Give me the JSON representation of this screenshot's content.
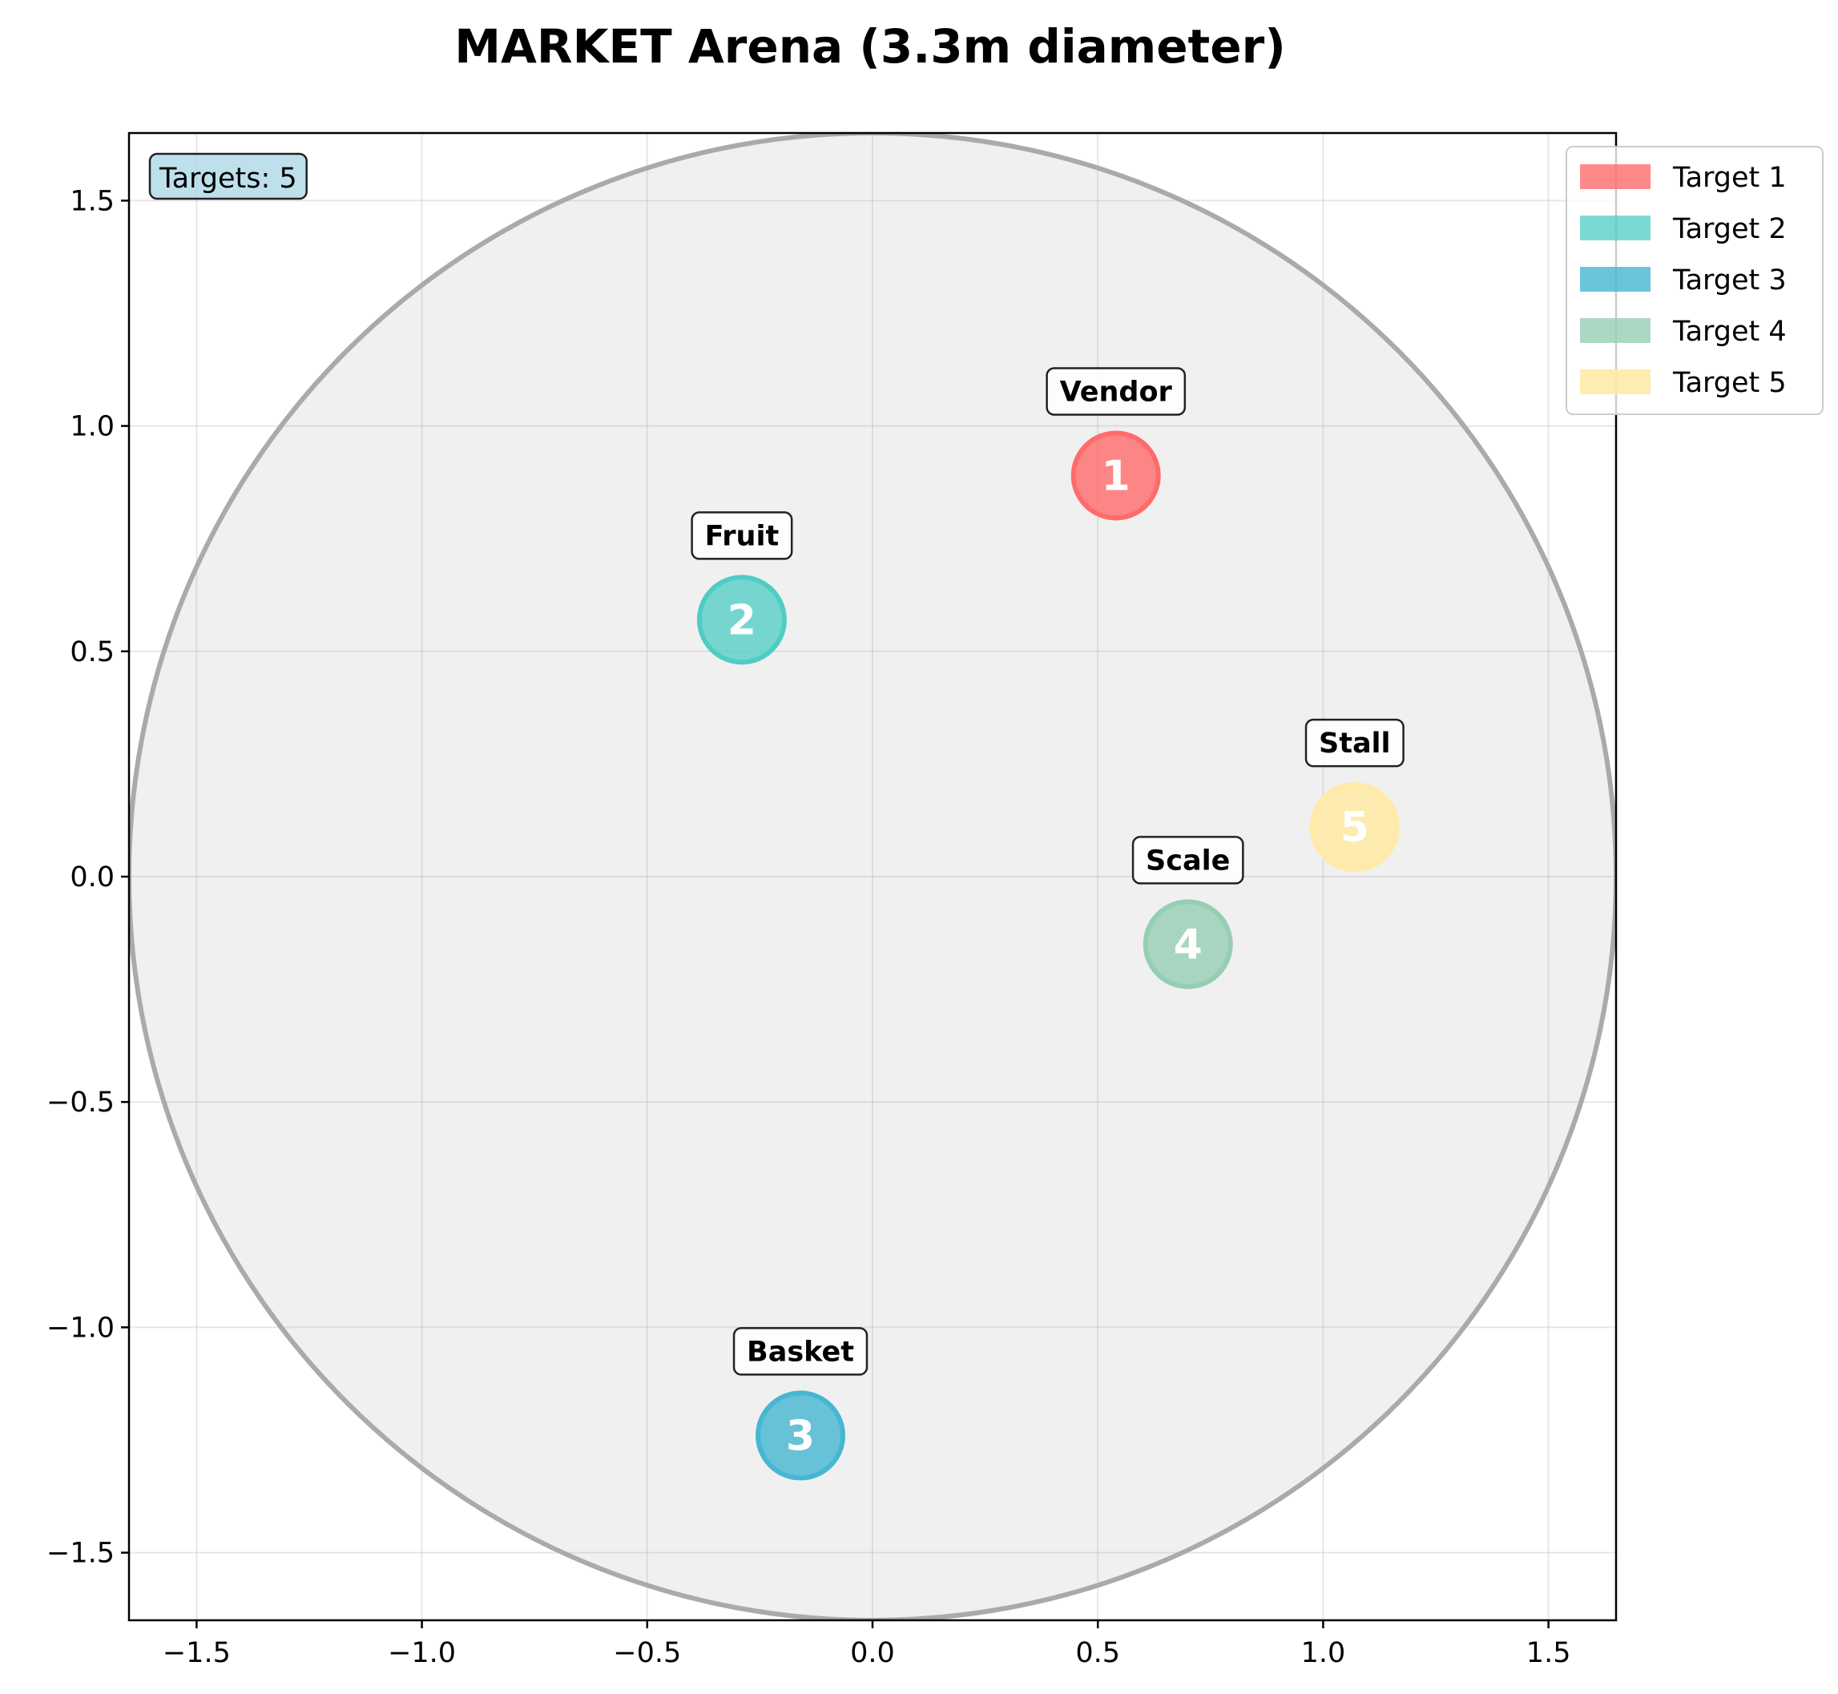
{
  "chart_data": {
    "type": "scatter",
    "title": "MARKET Arena (3.3m diameter)",
    "xlabel": "",
    "ylabel": "",
    "xlim": [
      -1.65,
      1.65
    ],
    "ylim": [
      -1.65,
      1.65
    ],
    "xticks": [
      -1.5,
      -1.0,
      -0.5,
      0.0,
      0.5,
      1.0,
      1.5
    ],
    "yticks": [
      -1.5,
      -1.0,
      -0.5,
      0.0,
      0.5,
      1.0,
      1.5
    ],
    "xtick_labels": [
      "−1.5",
      "−1.0",
      "−0.5",
      "0.0",
      "0.5",
      "1.0",
      "1.5"
    ],
    "ytick_labels": [
      "−1.5",
      "−1.0",
      "−0.5",
      "0.0",
      "0.5",
      "1.0",
      "1.5"
    ],
    "grid": true,
    "arena": {
      "center": [
        0,
        0
      ],
      "diameter": 3.3,
      "fill": "#f0f0f0",
      "edge": "#aaaaaa"
    },
    "target_count_text": "Targets: 5",
    "legend_position": "upper-right-outside",
    "targets": [
      {
        "id": "1",
        "name": "Target 1",
        "label": "Vendor",
        "x": 0.54,
        "y": 0.89,
        "color": "#ff6b6b",
        "alpha": 0.8
      },
      {
        "id": "2",
        "name": "Target 2",
        "label": "Fruit",
        "x": -0.29,
        "y": 0.57,
        "color": "#4ecdc4",
        "alpha": 0.75
      },
      {
        "id": "3",
        "name": "Target 3",
        "label": "Basket",
        "x": -0.16,
        "y": -1.24,
        "color": "#45b7d1",
        "alpha": 0.8
      },
      {
        "id": "4",
        "name": "Target 4",
        "label": "Scale",
        "x": 0.7,
        "y": -0.15,
        "color": "#96ceb4",
        "alpha": 0.8
      },
      {
        "id": "5",
        "name": "Target 5",
        "label": "Stall",
        "x": 1.07,
        "y": 0.11,
        "color": "#ffeaa7",
        "alpha": 0.9
      }
    ]
  }
}
